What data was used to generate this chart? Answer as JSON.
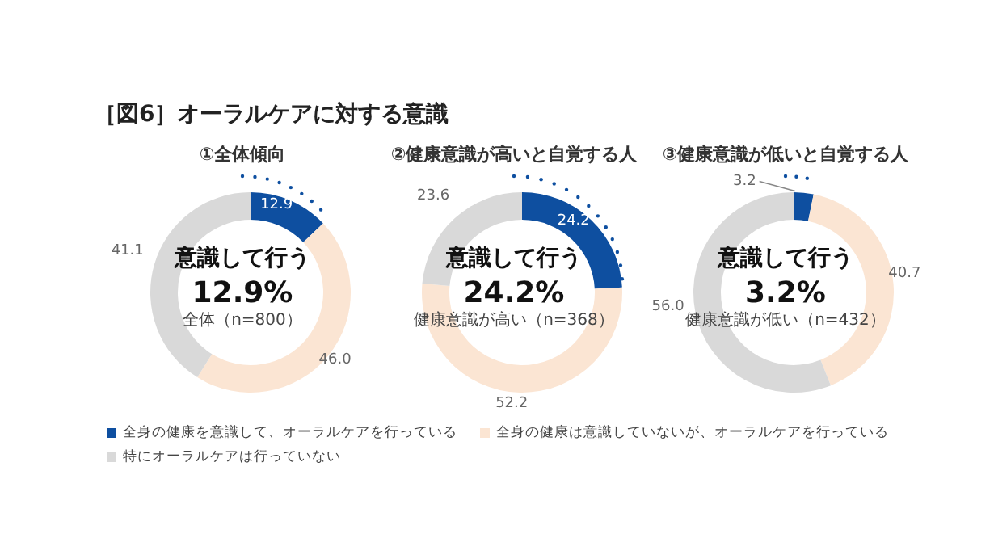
{
  "chart_data": [
    {
      "type": "donut",
      "title": "［図6］オーラルケアに対する意識",
      "subtitle": "①全体傾向",
      "categories": [
        "全身の健康を意識して、オーラルケアを行っている",
        "全身の健康は意識していないが、オーラルケアを行っている",
        "特にオーラルケアは行っていない"
      ],
      "values": [
        12.9,
        46.0,
        41.1
      ],
      "value_labels": [
        "12.9",
        "46.0",
        "41.1"
      ],
      "colors": [
        "#0e4fa0",
        "#fbe5d3",
        "#d9d9d9"
      ],
      "annotations": [
        "意識して行う",
        "12.9%",
        "全体（n=800）"
      ],
      "legend": "bottom"
    },
    {
      "type": "donut",
      "title": "②健康意識が高いと自覚する人",
      "values": [
        24.2,
        52.2,
        23.6
      ],
      "value_labels": [
        "24.2",
        "52.2",
        "23.6"
      ],
      "colors": [
        "#0e4fa0",
        "#fbe5d3",
        "#d9d9d9"
      ],
      "annotations": [
        "意識して行う",
        "24.2%",
        "健康意識が高い（n=368）"
      ]
    },
    {
      "type": "donut",
      "title": "③健康意識が低いと自覚する人",
      "values": [
        3.2,
        40.7,
        56.0
      ],
      "value_labels": [
        "3.2",
        "40.7",
        "56.0"
      ],
      "colors": [
        "#0e4fa0",
        "#fbe5d3",
        "#d9d9d9"
      ],
      "annotations": [
        "意識して行う",
        "3.2%",
        "健康意識が低い（n=432）"
      ]
    }
  ]
}
